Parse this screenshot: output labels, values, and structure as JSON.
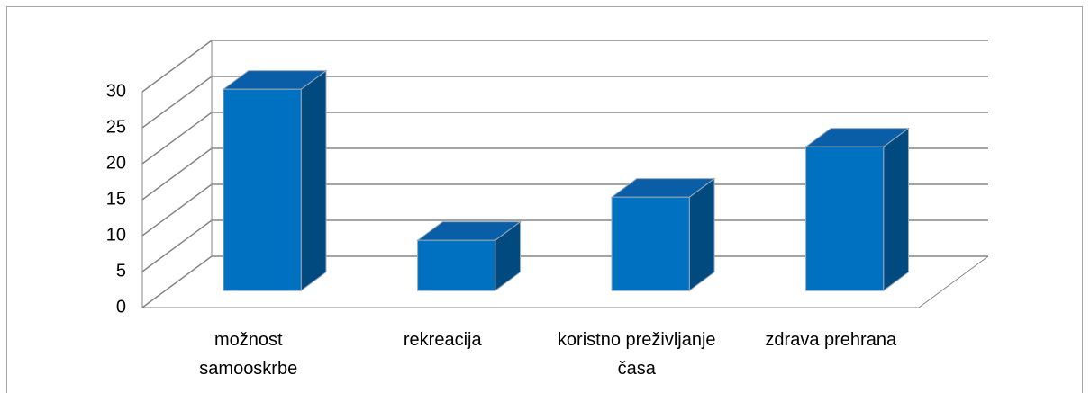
{
  "chart_data": {
    "type": "bar3d",
    "categories": [
      "možnost samooskrbe",
      "rekreacija",
      "koristno preživljanje časa",
      "zdrava prehrana"
    ],
    "values": [
      28,
      7,
      13,
      20
    ],
    "color": "#0070c0",
    "ylim": [
      0,
      30
    ],
    "yticks": [
      0,
      5,
      10,
      15,
      20,
      25,
      30
    ],
    "grid": true
  }
}
